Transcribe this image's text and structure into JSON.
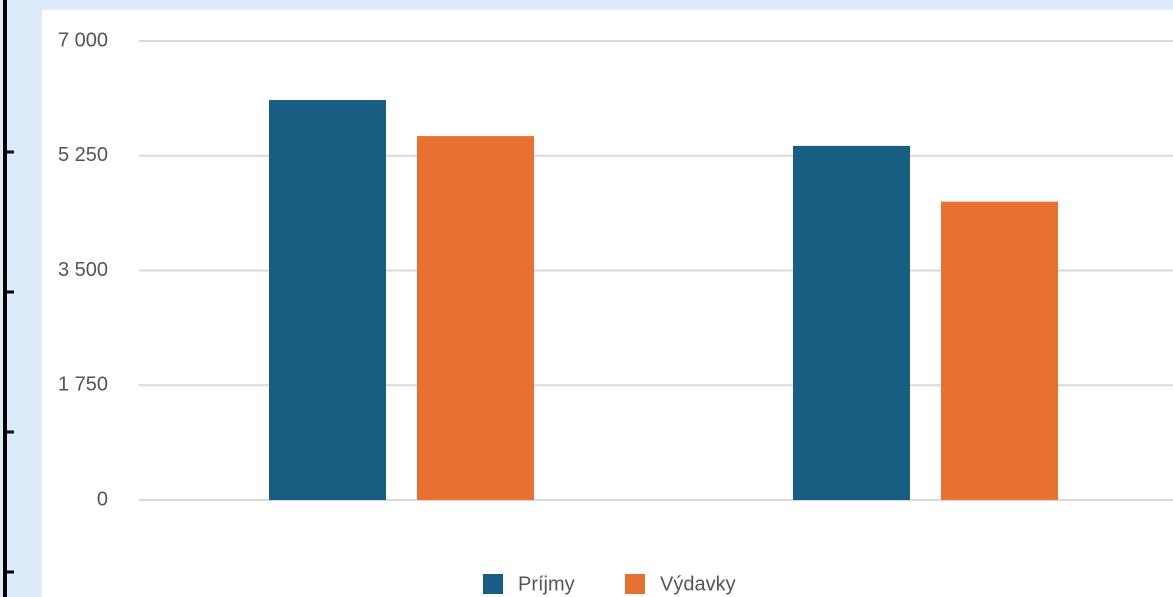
{
  "chart_data": {
    "type": "bar",
    "categories": [
      null,
      null
    ],
    "series": [
      {
        "name": "Príjmy",
        "color": "#175e82",
        "values": [
          6100,
          5400
        ]
      },
      {
        "name": "Výdavky",
        "color": "#e87131",
        "values": [
          5550,
          4550
        ]
      }
    ],
    "ylim": [
      0,
      7000
    ],
    "yticks": [
      0,
      {
        "value": 1750,
        "label": "1 750"
      },
      {
        "value": 3500,
        "label": "3 500"
      },
      {
        "value": 5250,
        "label": "5 250"
      },
      {
        "value": 7000,
        "label": "7 000"
      }
    ],
    "grid": true,
    "legend": "bottom"
  }
}
